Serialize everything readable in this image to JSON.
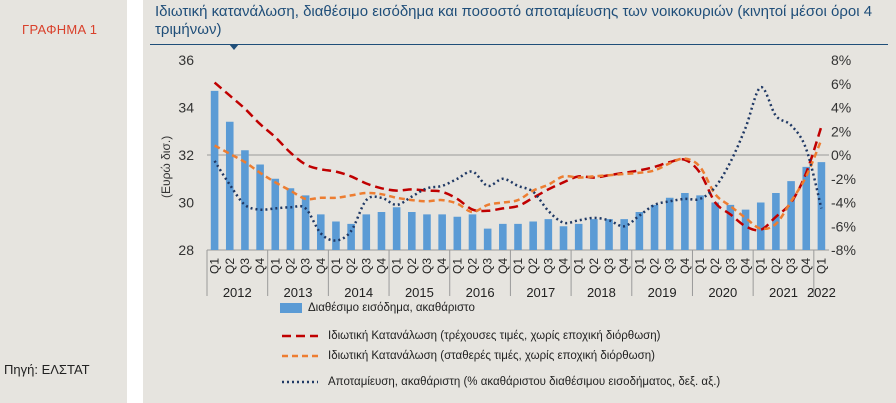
{
  "figure_label": "ΓΡΑΦΗΜΑ 1",
  "source": "Πηγή: ΕΛΣΤΑΤ",
  "colors": {
    "bar": "#5b9bd5",
    "nominal": "#c00000",
    "real": "#ed7d31",
    "saving": "#1f3864",
    "title": "#1f4e79",
    "label": "#d9402b"
  },
  "chart_data": {
    "type": "bar+line",
    "title": "Ιδιωτική κατανάλωση, διαθέσιμο εισόδημα και ποσοστό αποταμίευσης των νοικοκυριών (κινητοί μέσοι όροι 4 τριμήνων)",
    "ylabel_left": "(Ευρώ δισ.)",
    "ylim_left": [
      28,
      36
    ],
    "yticks_left": [
      "28",
      "30",
      "32",
      "34",
      "36"
    ],
    "ylim_right": [
      -8,
      8
    ],
    "yticks_right": [
      "-8%",
      "-6%",
      "-4%",
      "-2%",
      "0%",
      "2%",
      "4%",
      "6%",
      "8%"
    ],
    "quarters": [
      "Q1",
      "Q2",
      "Q3",
      "Q4",
      "Q1",
      "Q2",
      "Q3",
      "Q4",
      "Q1",
      "Q2",
      "Q3",
      "Q4",
      "Q1",
      "Q2",
      "Q3",
      "Q4",
      "Q1",
      "Q2",
      "Q3",
      "Q4",
      "Q1",
      "Q2",
      "Q3",
      "Q4",
      "Q1",
      "Q2",
      "Q3",
      "Q4",
      "Q1",
      "Q2",
      "Q3",
      "Q4",
      "Q1",
      "Q2",
      "Q3",
      "Q4",
      "Q1",
      "Q2",
      "Q3",
      "Q4",
      "Q1"
    ],
    "years": [
      {
        "label": "2012",
        "count": 4
      },
      {
        "label": "2013",
        "count": 4
      },
      {
        "label": "2014",
        "count": 4
      },
      {
        "label": "2015",
        "count": 4
      },
      {
        "label": "2016",
        "count": 4
      },
      {
        "label": "2017",
        "count": 4
      },
      {
        "label": "2018",
        "count": 4
      },
      {
        "label": "2019",
        "count": 4
      },
      {
        "label": "2020",
        "count": 4
      },
      {
        "label": "2021",
        "count": 4
      },
      {
        "label": "2022",
        "count": 1
      }
    ],
    "series": [
      {
        "name": "Διαθέσιμο εισόδημα, ακαθάριστο",
        "type": "bar",
        "axis": "left",
        "color": "#5b9bd5",
        "values": [
          34.7,
          33.4,
          32.2,
          31.6,
          31.0,
          30.6,
          30.3,
          29.5,
          29.2,
          29.1,
          29.5,
          29.6,
          29.8,
          29.6,
          29.5,
          29.5,
          29.4,
          29.5,
          28.9,
          29.1,
          29.1,
          29.2,
          29.3,
          29.0,
          29.1,
          29.3,
          29.3,
          29.3,
          29.6,
          29.9,
          30.2,
          30.4,
          30.3,
          30.0,
          29.9,
          29.7,
          30.0,
          30.4,
          30.9,
          31.5,
          31.7
        ]
      },
      {
        "name": "Ιδιωτική Κατανάλωση (τρέχουσες τιμές, χωρίς εποχική διόρθωση)",
        "type": "line",
        "axis": "right",
        "dash": "long",
        "color": "#c00000",
        "values": [
          6.1,
          5.0,
          3.9,
          2.6,
          1.5,
          0.2,
          -0.8,
          -1.2,
          -1.4,
          -1.8,
          -2.4,
          -2.8,
          -3.0,
          -2.9,
          -3.0,
          -3.1,
          -3.7,
          -4.6,
          -4.7,
          -4.5,
          -4.3,
          -3.6,
          -2.9,
          -2.3,
          -1.8,
          -1.9,
          -1.7,
          -1.5,
          -1.3,
          -1.0,
          -0.6,
          -0.4,
          -1.5,
          -4.0,
          -5.0,
          -6.0,
          -6.3,
          -5.2,
          -4.0,
          -1.5,
          2.4
        ]
      },
      {
        "name": "Ιδιωτική Κατανάλωση (σταθερές τιμές, χωρίς εποχική διόρθωση)",
        "type": "line",
        "axis": "right",
        "dash": "short",
        "color": "#ed7d31",
        "values": [
          0.8,
          0.1,
          -0.6,
          -1.5,
          -2.3,
          -3.0,
          -3.7,
          -3.6,
          -3.6,
          -3.4,
          -3.2,
          -3.3,
          -3.6,
          -3.8,
          -3.9,
          -3.8,
          -4.1,
          -4.8,
          -4.2,
          -4.0,
          -3.8,
          -3.0,
          -2.5,
          -1.8,
          -1.9,
          -1.8,
          -1.7,
          -1.6,
          -1.5,
          -1.3,
          -0.7,
          -0.3,
          -1.0,
          -3.3,
          -4.3,
          -5.3,
          -6.2,
          -5.8,
          -3.9,
          -1.8,
          1.3
        ]
      },
      {
        "name": "Αποταμίευση, ακαθάριστη (% ακαθάριστου διαθέσιμου εισοδήματος, δεξ. αξ.)",
        "type": "line",
        "axis": "right",
        "dash": "dot",
        "color": "#1f3864",
        "values": [
          -0.5,
          -2.5,
          -4.2,
          -4.6,
          -4.5,
          -4.4,
          -4.5,
          -6.6,
          -7.2,
          -6.4,
          -3.8,
          -3.6,
          -4.2,
          -3.5,
          -2.8,
          -2.6,
          -2.0,
          -1.4,
          -2.6,
          -2.0,
          -2.6,
          -3.1,
          -4.7,
          -5.7,
          -5.5,
          -5.3,
          -5.5,
          -6.0,
          -5.1,
          -4.2,
          -3.9,
          -3.7,
          -3.7,
          -2.7,
          -0.6,
          2.3,
          5.7,
          3.3,
          2.5,
          0.5,
          -4.5
        ]
      }
    ]
  }
}
